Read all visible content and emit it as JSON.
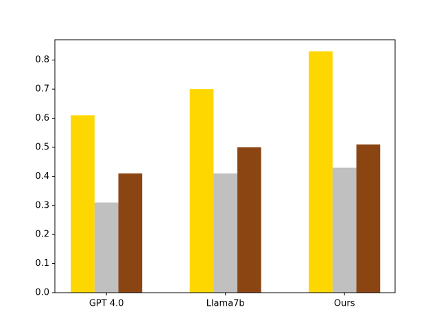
{
  "chart_data": {
    "type": "bar",
    "categories": [
      "GPT 4.0",
      "Llama7b",
      "Ours"
    ],
    "series": [
      {
        "values": [
          0.61,
          0.7,
          0.83
        ],
        "color": "#FFD700"
      },
      {
        "values": [
          0.31,
          0.41,
          0.43
        ],
        "color": "#C0C0C0"
      },
      {
        "values": [
          0.41,
          0.5,
          0.51
        ],
        "color": "#8B4513"
      }
    ],
    "title": "",
    "xlabel": "",
    "ylabel": "",
    "ylim": [
      0,
      0.87
    ],
    "yticks": [
      "0.0",
      "0.1",
      "0.2",
      "0.3",
      "0.4",
      "0.5",
      "0.6",
      "0.7",
      "0.8"
    ],
    "grid": false,
    "legend": "none"
  }
}
